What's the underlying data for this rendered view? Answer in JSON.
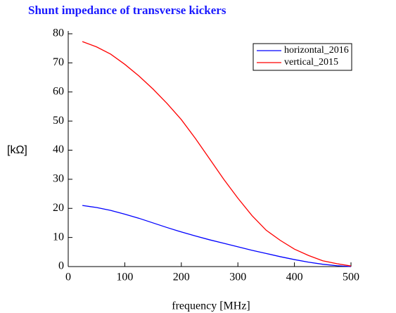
{
  "chart_data": {
    "type": "line",
    "title": "Shunt impedance of transverse kickers",
    "x_label": "frequency [MHz]",
    "y_label": "[kΩ]",
    "x": [
      25,
      50,
      75,
      100,
      125,
      150,
      175,
      200,
      225,
      250,
      275,
      300,
      325,
      350,
      375,
      400,
      425,
      450,
      475,
      500
    ],
    "series": [
      {
        "name": "horizontal_2016",
        "color": "#0000ff",
        "values": [
          21,
          20.3,
          19.3,
          18,
          16.6,
          15,
          13.4,
          11.9,
          10.5,
          9.2,
          8,
          6.8,
          5.6,
          4.5,
          3.4,
          2.4,
          1.5,
          0.8,
          0.3,
          0
        ]
      },
      {
        "name": "vertical_2015",
        "color": "#ff0000",
        "values": [
          77.3,
          75.5,
          73,
          69.5,
          65.5,
          61,
          56,
          50.5,
          44,
          37,
          30,
          23.5,
          17.5,
          12.5,
          9,
          6,
          3.8,
          2,
          1,
          0.2
        ]
      }
    ],
    "xlim": [
      0,
      500
    ],
    "xticks": [
      0,
      100,
      200,
      300,
      400,
      500
    ],
    "ylim": [
      0,
      80
    ],
    "yticks": [
      0,
      10,
      20,
      30,
      40,
      50,
      60,
      70,
      80
    ],
    "legend": "upper right"
  }
}
